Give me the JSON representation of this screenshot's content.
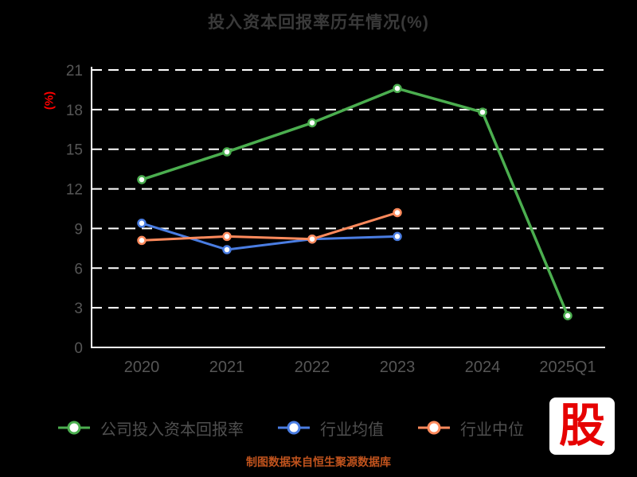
{
  "title": "投入资本回报率历年情况(%)",
  "y_axis_label": "(%)",
  "caption": "制图数据来自恒生聚源数据库",
  "watermark": "股",
  "colors": {
    "axis": "#ffffff",
    "grid": "#ffffff",
    "tick": "#565656",
    "title": "#3a3a3a",
    "y_axis_name": "#ff0000",
    "caption": "#c0531d",
    "watermark_red": "#e60202",
    "marker_fill": "#ffffff"
  },
  "chart_data": {
    "type": "line",
    "title": "投入资本回报率历年情况(%)",
    "ylabel": "(%)",
    "categories": [
      "2020",
      "2021",
      "2022",
      "2023",
      "2024",
      "2025Q1"
    ],
    "series": [
      {
        "key": "company-roic",
        "name": "公司投入资本回报率",
        "color": "#4bae4f",
        "width": 3.5,
        "values": [
          12.7,
          14.8,
          17.0,
          19.6,
          17.8,
          2.4
        ]
      },
      {
        "key": "industry-mean",
        "name": "行业均值",
        "color": "#4a7de2",
        "width": 3,
        "values": [
          9.4,
          7.4,
          8.2,
          8.4,
          null,
          null
        ]
      },
      {
        "key": "industry-median",
        "name": "行业中位",
        "color": "#ff8a5c",
        "width": 3,
        "values": [
          8.1,
          8.4,
          8.2,
          10.2,
          null,
          null
        ]
      }
    ],
    "ylim": [
      0,
      21
    ],
    "yticks": [
      0,
      3,
      6,
      9,
      12,
      15,
      18,
      21
    ],
    "grid": "dashed-horizontal",
    "legend_position": "bottom"
  }
}
